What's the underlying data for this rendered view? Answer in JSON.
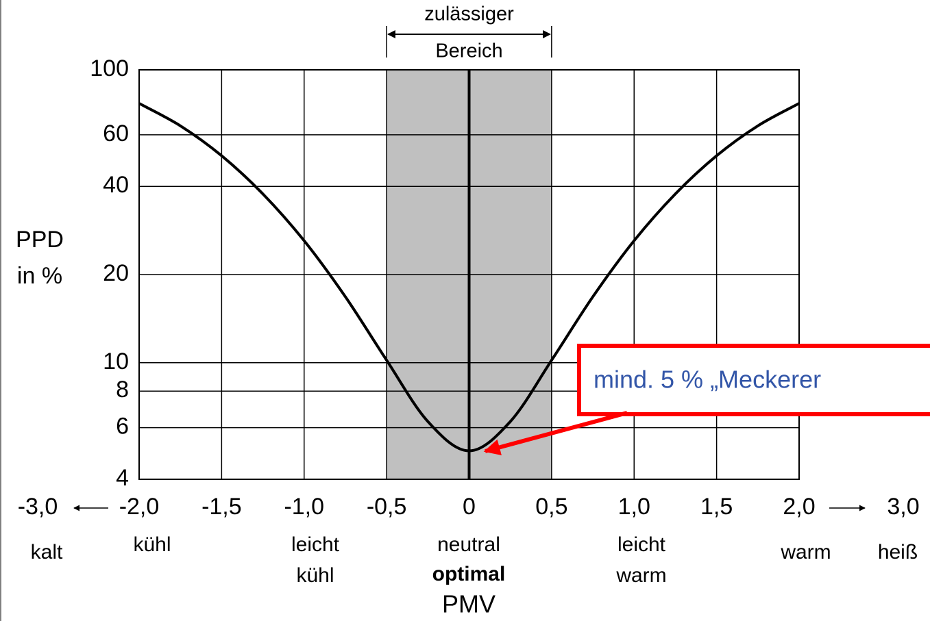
{
  "chart_data": {
    "type": "line",
    "ylabel": [
      "PPD",
      "in %"
    ],
    "xlabel": "PMV",
    "x": [
      -2,
      -1.75,
      -1.5,
      -1.25,
      -1,
      -0.75,
      -0.5,
      -0.25,
      0,
      0.25,
      0.5,
      0.75,
      1,
      1.25,
      1.5,
      1.75,
      2
    ],
    "values": [
      76.8,
      64.4,
      50.9,
      37.7,
      26.1,
      16.8,
      10.2,
      6.3,
      5,
      6.3,
      10.2,
      16.8,
      26.1,
      37.7,
      50.9,
      64.4,
      76.8
    ],
    "color": "#000000",
    "log_y": true,
    "grid": true,
    "xlim": [
      -2,
      2
    ],
    "ylim": [
      4,
      100
    ],
    "xticks": [
      {
        "value": -2,
        "label": "-2,0"
      },
      {
        "value": -1.5,
        "label": "-1,5"
      },
      {
        "value": -1,
        "label": "-1,0"
      },
      {
        "value": -0.5,
        "label": "-0,5"
      },
      0,
      {
        "value": 0.5,
        "label": "0,5"
      },
      {
        "value": 1,
        "label": "1,0"
      },
      {
        "value": 1.5,
        "label": "1,5"
      },
      {
        "value": 2,
        "label": "2,0"
      }
    ],
    "yticks": [
      4,
      6,
      8,
      10,
      20,
      40,
      60,
      100
    ],
    "outer_ticks": [
      {
        "value": -3,
        "label": "-3,0"
      },
      {
        "value": 3,
        "label": "3,0"
      }
    ],
    "sensations": [
      [
        "kalt"
      ],
      [
        "kühl"
      ],
      [
        "leicht",
        "kühl"
      ],
      [
        "neutral"
      ],
      [
        "leicht",
        "warm"
      ],
      [
        "warm"
      ],
      [
        "heiß"
      ]
    ],
    "emphasis": "optimal",
    "shaded_range": [
      -0.5,
      0.5
    ],
    "shaded_color": "#c0c0c0",
    "shaded_label": [
      "zulässiger",
      "Bereich"
    ],
    "annotation": "mind. 5 % „Meckerer"
  }
}
